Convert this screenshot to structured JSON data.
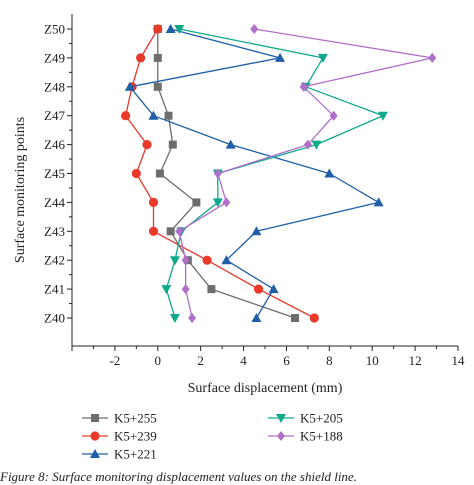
{
  "chart_data": {
    "type": "line",
    "xlabel": "Surface displacement (mm)",
    "ylabel": "Surface monitoring points",
    "xlim": [
      -4,
      14
    ],
    "xticks": [
      -2,
      0,
      2,
      4,
      6,
      8,
      10,
      12,
      14
    ],
    "xticklabels": [
      "-2",
      "0",
      "2",
      "4",
      "6",
      "8",
      "10",
      "12",
      "14"
    ],
    "categories": [
      "Z40",
      "Z41",
      "Z42",
      "Z43",
      "Z44",
      "Z45",
      "Z46",
      "Z47",
      "Z48",
      "Z49",
      "Z50"
    ],
    "grid": false,
    "legend_position": "bottom",
    "series": [
      {
        "name": "K5+255",
        "color": "#6d6d6d",
        "marker": "square",
        "values": [
          6.4,
          2.5,
          1.4,
          0.6,
          1.8,
          0.1,
          0.7,
          0.5,
          0.0,
          0.0,
          0.0
        ]
      },
      {
        "name": "K5+239",
        "color": "#e8392b",
        "marker": "circle",
        "values": [
          7.3,
          4.7,
          2.3,
          -0.2,
          -0.2,
          -1.0,
          -0.5,
          -1.5,
          -1.2,
          -0.8,
          0.0
        ]
      },
      {
        "name": "K5+221",
        "color": "#1f5fa8",
        "marker": "triangle-up",
        "values": [
          4.6,
          5.4,
          3.2,
          4.6,
          10.3,
          8.0,
          3.4,
          -0.2,
          -1.3,
          5.7,
          0.6
        ]
      },
      {
        "name": "K5+205",
        "color": "#0ea98a",
        "marker": "triangle-down",
        "values": [
          0.8,
          0.4,
          0.8,
          1.1,
          2.8,
          2.8,
          7.4,
          10.5,
          6.9,
          7.7,
          1.0
        ]
      },
      {
        "name": "K5+188",
        "color": "#b06fc8",
        "marker": "diamond",
        "values": [
          1.6,
          1.3,
          1.3,
          1.0,
          3.2,
          2.8,
          7.0,
          8.2,
          6.8,
          12.8,
          4.5
        ]
      }
    ]
  },
  "caption": "Figure 8: Surface monitoring displacement values on the shield line."
}
